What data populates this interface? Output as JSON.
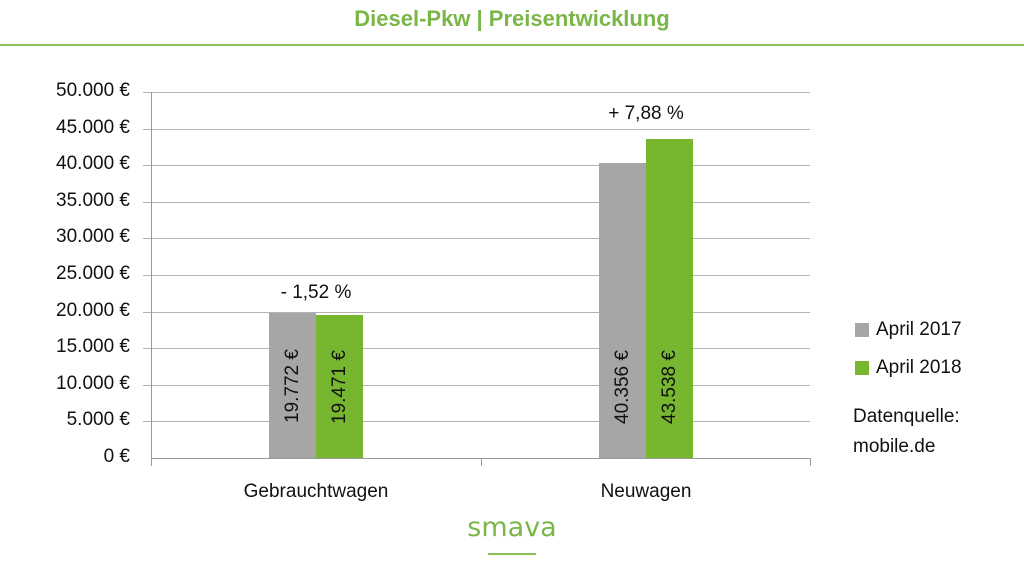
{
  "header": {
    "title": "Diesel-Pkw | Preisentwicklung"
  },
  "colors": {
    "april_2017": "#a6a6a6",
    "april_2018": "#77b72f",
    "title": "#7ab648"
  },
  "axis": {
    "ticks": [
      "50.000 €",
      "45.000 €",
      "40.000 €",
      "35.000 €",
      "30.000 €",
      "25.000 €",
      "20.000 €",
      "15.000 €",
      "10.000 €",
      "5.000 €",
      "0 €"
    ]
  },
  "categories": [
    {
      "name": "Gebrauchtwagen",
      "change": "- 1,52 %",
      "values": [
        {
          "series": "April 2017",
          "value": 19772,
          "label": "19.772 €"
        },
        {
          "series": "April 2018",
          "value": 19471,
          "label": "19.471 €"
        }
      ]
    },
    {
      "name": "Neuwagen",
      "change": "+ 7,88 %",
      "values": [
        {
          "series": "April 2017",
          "value": 40356,
          "label": "40.356 €"
        },
        {
          "series": "April 2018",
          "value": 43538,
          "label": "43.538 €"
        }
      ]
    }
  ],
  "legend": {
    "items": [
      {
        "label": "April 2017"
      },
      {
        "label": "April 2018"
      }
    ]
  },
  "source": {
    "line1": "Datenquelle:",
    "line2": "mobile.de"
  },
  "logo": {
    "text": "smava"
  },
  "chart_data": {
    "type": "bar",
    "title": "Diesel-Pkw | Preisentwicklung",
    "categories": [
      "Gebrauchtwagen",
      "Neuwagen"
    ],
    "series": [
      {
        "name": "April 2017",
        "values": [
          19772,
          40356
        ],
        "color": "#a6a6a6"
      },
      {
        "name": "April 2018",
        "values": [
          19471,
          43538
        ],
        "color": "#77b72f"
      }
    ],
    "annotations": [
      "- 1,52 %",
      "+ 7,88 %"
    ],
    "xlabel": "",
    "ylabel": "",
    "ylim": [
      0,
      50000
    ],
    "yticks": [
      0,
      5000,
      10000,
      15000,
      20000,
      25000,
      30000,
      35000,
      40000,
      45000,
      50000
    ],
    "grid": true,
    "legend_position": "right",
    "source_note": "Datenquelle: mobile.de"
  }
}
